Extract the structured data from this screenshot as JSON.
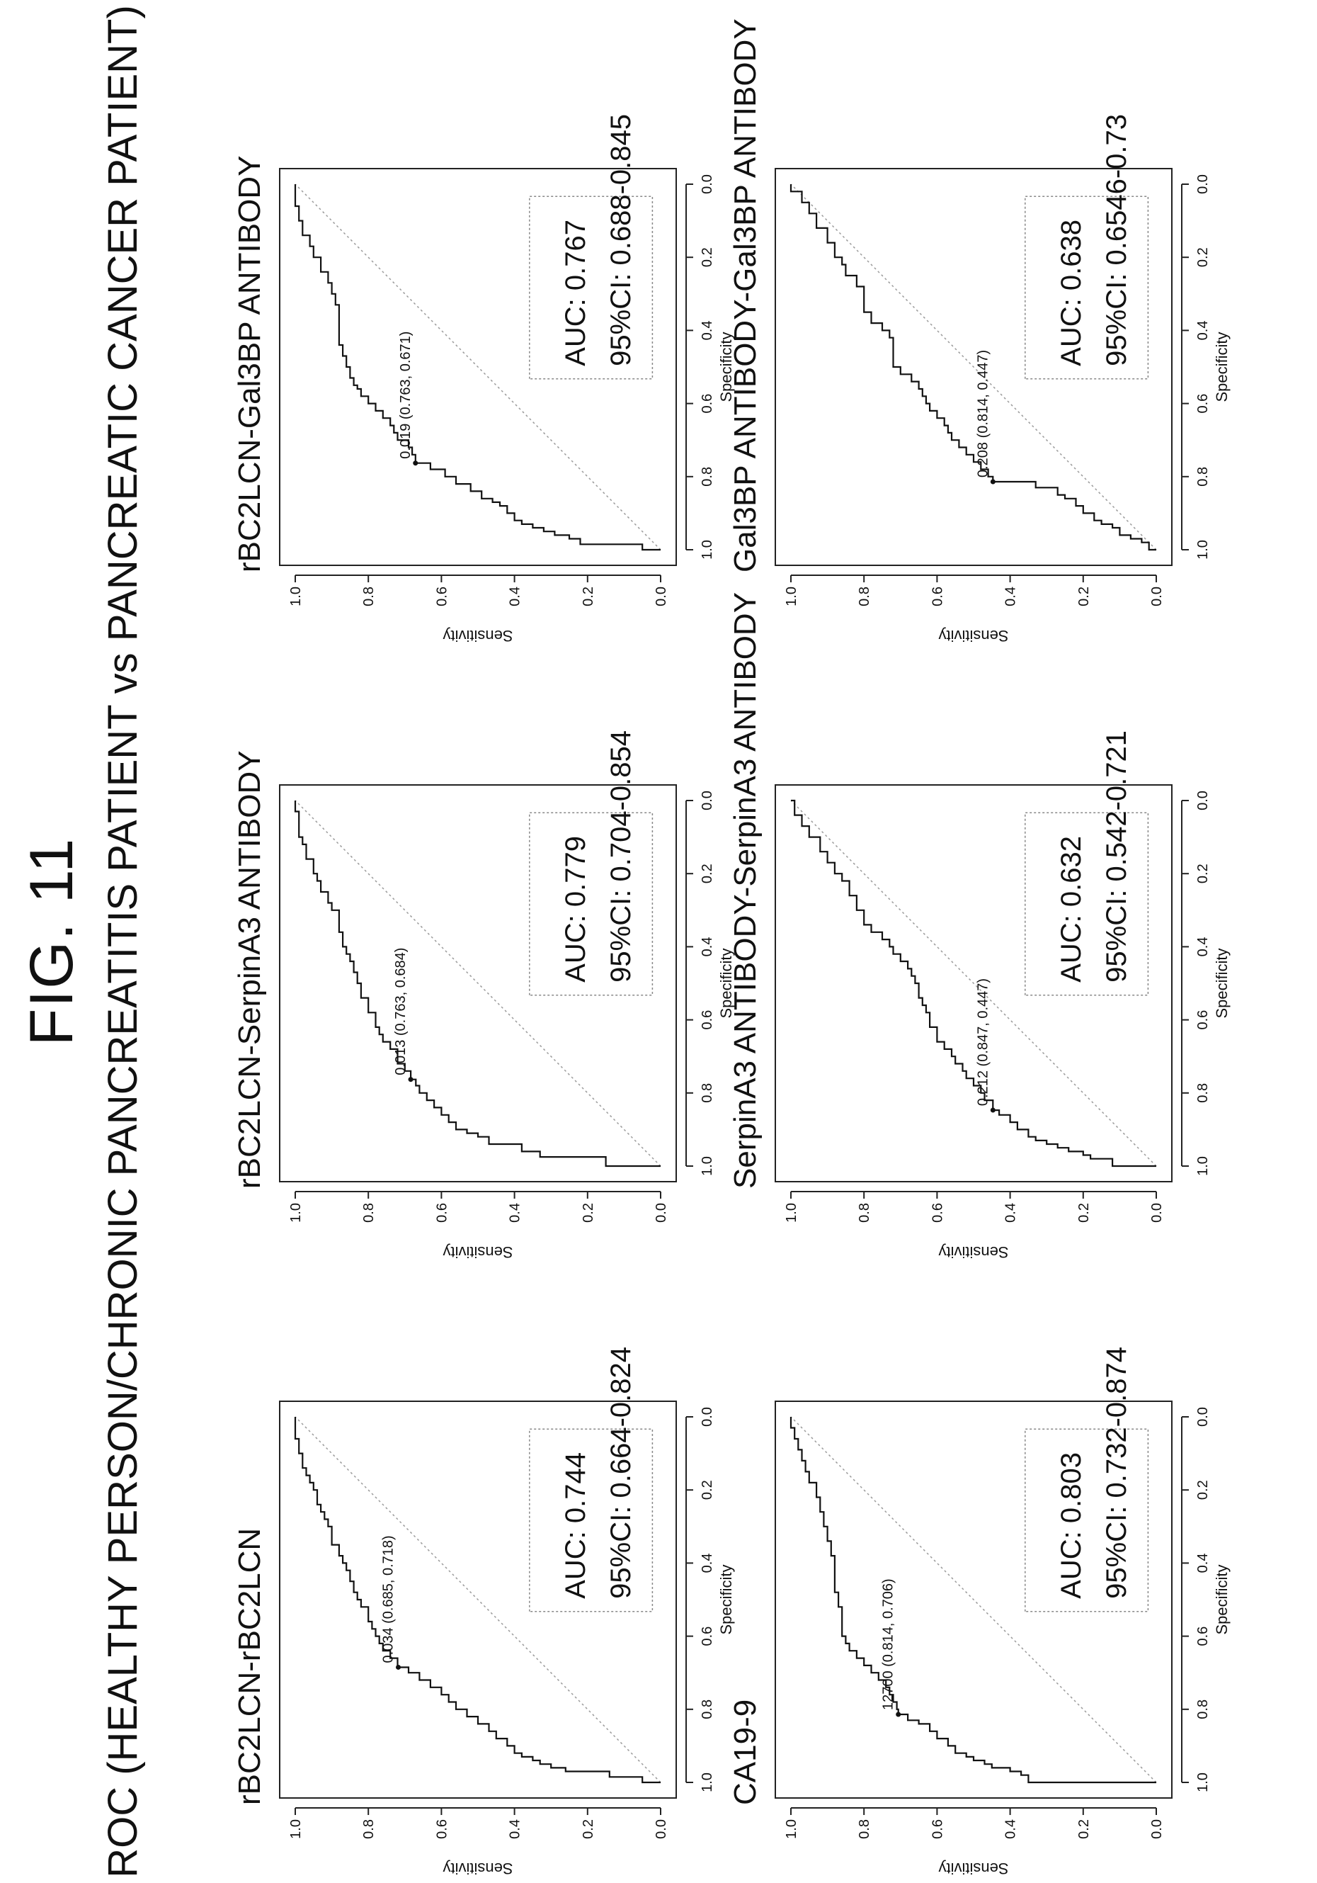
{
  "figure": {
    "title": "FIG. 11",
    "subtitle": "ROC (HEALTHY PERSON/CHRONIC PANCREATITIS PATIENT vs PANCREATIC CANCER PATIENT)"
  },
  "chart_data": [
    {
      "type": "line",
      "title": "rBC2LCN-rBC2LCN",
      "xlabel": "Specificity",
      "ylabel": "Sensitivity",
      "xlim": [
        1.0,
        0.0
      ],
      "ylim": [
        0.0,
        1.0
      ],
      "x_ticks": [
        "1.0",
        "0.8",
        "0.6",
        "0.4",
        "0.2",
        "0.0"
      ],
      "y_ticks": [
        "0.0",
        "0.2",
        "0.4",
        "0.6",
        "0.8",
        "1.0"
      ],
      "auc_text": "AUC: 0.744",
      "ci_text": "95%CI: 0.664-0.824",
      "threshold_label": "0.034 (0.685, 0.718)",
      "threshold_point": [
        0.685,
        0.718
      ],
      "series": [
        {
          "x": [
            1.0,
            1.0,
            0.985,
            0.985,
            0.97,
            0.97,
            0.96,
            0.95,
            0.94,
            0.93,
            0.92,
            0.9,
            0.88,
            0.86,
            0.84,
            0.82,
            0.8,
            0.78,
            0.76,
            0.74,
            0.72,
            0.7,
            0.685,
            0.66,
            0.64,
            0.62,
            0.6,
            0.58,
            0.56,
            0.54,
            0.52,
            0.5,
            0.48,
            0.45,
            0.42,
            0.4,
            0.38,
            0.35,
            0.32,
            0.3,
            0.28,
            0.26,
            0.24,
            0.2,
            0.18,
            0.16,
            0.14,
            0.12,
            0.1,
            0.08,
            0.06,
            0.04,
            0.0
          ],
          "y": [
            0.0,
            0.05,
            0.08,
            0.14,
            0.17,
            0.26,
            0.3,
            0.33,
            0.35,
            0.38,
            0.4,
            0.42,
            0.45,
            0.47,
            0.5,
            0.53,
            0.56,
            0.58,
            0.6,
            0.63,
            0.66,
            0.69,
            0.72,
            0.74,
            0.76,
            0.77,
            0.78,
            0.79,
            0.8,
            0.8,
            0.82,
            0.83,
            0.84,
            0.85,
            0.86,
            0.87,
            0.88,
            0.9,
            0.9,
            0.91,
            0.92,
            0.93,
            0.94,
            0.95,
            0.96,
            0.97,
            0.98,
            0.98,
            0.99,
            0.99,
            1.0,
            1.0,
            1.0
          ]
        }
      ]
    },
    {
      "type": "line",
      "title": "rBC2LCN-SerpinA3 ANTIBODY",
      "xlabel": "Specificity",
      "ylabel": "Sensitivity",
      "xlim": [
        1.0,
        0.0
      ],
      "ylim": [
        0.0,
        1.0
      ],
      "x_ticks": [
        "1.0",
        "0.8",
        "0.6",
        "0.4",
        "0.2",
        "0.0"
      ],
      "y_ticks": [
        "0.0",
        "0.2",
        "0.4",
        "0.6",
        "0.8",
        "1.0"
      ],
      "auc_text": "AUC: 0.779",
      "ci_text": "95%CI: 0.704-0.854",
      "threshold_label": "0.013 (0.763, 0.684)",
      "threshold_point": [
        0.763,
        0.684
      ],
      "series": [
        {
          "x": [
            1.0,
            1.0,
            0.975,
            0.975,
            0.96,
            0.96,
            0.94,
            0.94,
            0.92,
            0.91,
            0.9,
            0.88,
            0.86,
            0.84,
            0.82,
            0.8,
            0.78,
            0.763,
            0.74,
            0.72,
            0.7,
            0.68,
            0.66,
            0.64,
            0.62,
            0.6,
            0.58,
            0.56,
            0.54,
            0.5,
            0.47,
            0.44,
            0.42,
            0.4,
            0.36,
            0.33,
            0.3,
            0.28,
            0.25,
            0.22,
            0.2,
            0.16,
            0.12,
            0.1,
            0.06,
            0.03,
            0.0
          ],
          "y": [
            0.0,
            0.15,
            0.15,
            0.33,
            0.35,
            0.38,
            0.42,
            0.47,
            0.5,
            0.53,
            0.56,
            0.58,
            0.6,
            0.62,
            0.64,
            0.66,
            0.67,
            0.684,
            0.7,
            0.72,
            0.72,
            0.74,
            0.76,
            0.77,
            0.78,
            0.78,
            0.8,
            0.8,
            0.82,
            0.83,
            0.84,
            0.85,
            0.86,
            0.87,
            0.88,
            0.88,
            0.9,
            0.91,
            0.93,
            0.94,
            0.95,
            0.97,
            0.98,
            0.99,
            0.99,
            1.0,
            1.0
          ]
        }
      ]
    },
    {
      "type": "line",
      "title": "rBC2LCN-Gal3BP ANTIBODY",
      "xlabel": "Specificity",
      "ylabel": "Sensitivity",
      "xlim": [
        1.0,
        0.0
      ],
      "ylim": [
        0.0,
        1.0
      ],
      "x_ticks": [
        "1.0",
        "0.8",
        "0.6",
        "0.4",
        "0.2",
        "0.0"
      ],
      "y_ticks": [
        "0.0",
        "0.2",
        "0.4",
        "0.6",
        "0.8",
        "1.0"
      ],
      "auc_text": "AUC: 0.767",
      "ci_text": "95%CI: 0.688-0.845",
      "threshold_label": "0.019 (0.763, 0.671)",
      "threshold_point": [
        0.763,
        0.671
      ],
      "series": [
        {
          "x": [
            1.0,
            1.0,
            0.985,
            0.985,
            0.97,
            0.96,
            0.95,
            0.94,
            0.93,
            0.92,
            0.9,
            0.88,
            0.87,
            0.86,
            0.84,
            0.82,
            0.8,
            0.78,
            0.763,
            0.74,
            0.72,
            0.7,
            0.68,
            0.66,
            0.64,
            0.62,
            0.6,
            0.58,
            0.56,
            0.55,
            0.53,
            0.5,
            0.47,
            0.44,
            0.4,
            0.36,
            0.33,
            0.3,
            0.27,
            0.24,
            0.2,
            0.17,
            0.14,
            0.1,
            0.06,
            0.03,
            0.0
          ],
          "y": [
            0.0,
            0.05,
            0.2,
            0.22,
            0.25,
            0.29,
            0.32,
            0.35,
            0.38,
            0.4,
            0.42,
            0.44,
            0.46,
            0.49,
            0.52,
            0.56,
            0.59,
            0.63,
            0.671,
            0.68,
            0.69,
            0.72,
            0.73,
            0.74,
            0.76,
            0.78,
            0.8,
            0.82,
            0.83,
            0.84,
            0.85,
            0.86,
            0.87,
            0.88,
            0.88,
            0.88,
            0.89,
            0.9,
            0.91,
            0.93,
            0.95,
            0.96,
            0.98,
            0.99,
            1.0,
            1.0,
            1.0
          ]
        }
      ]
    },
    {
      "type": "line",
      "title": "CA19-9",
      "xlabel": "Specificity",
      "ylabel": "Sensitivity",
      "xlim": [
        1.0,
        0.0
      ],
      "ylim": [
        0.0,
        1.0
      ],
      "x_ticks": [
        "1.0",
        "0.8",
        "0.6",
        "0.4",
        "0.2",
        "0.0"
      ],
      "y_ticks": [
        "0.0",
        "0.2",
        "0.4",
        "0.6",
        "0.8",
        "1.0"
      ],
      "auc_text": "AUC: 0.803",
      "ci_text": "95%CI: 0.732-0.874",
      "threshold_label": "12700 (0.814, 0.706)",
      "threshold_point": [
        0.814,
        0.706
      ],
      "series": [
        {
          "x": [
            1.0,
            1.0,
            0.98,
            0.97,
            0.96,
            0.95,
            0.94,
            0.93,
            0.92,
            0.9,
            0.88,
            0.86,
            0.84,
            0.83,
            0.814,
            0.8,
            0.78,
            0.76,
            0.74,
            0.72,
            0.7,
            0.68,
            0.66,
            0.64,
            0.62,
            0.6,
            0.58,
            0.55,
            0.52,
            0.48,
            0.45,
            0.42,
            0.38,
            0.34,
            0.3,
            0.26,
            0.22,
            0.18,
            0.15,
            0.12,
            0.09,
            0.06,
            0.03,
            0.0
          ],
          "y": [
            0.0,
            0.35,
            0.37,
            0.4,
            0.45,
            0.47,
            0.5,
            0.52,
            0.55,
            0.57,
            0.6,
            0.62,
            0.65,
            0.68,
            0.706,
            0.71,
            0.72,
            0.73,
            0.74,
            0.76,
            0.78,
            0.8,
            0.82,
            0.84,
            0.85,
            0.86,
            0.86,
            0.86,
            0.87,
            0.88,
            0.88,
            0.88,
            0.89,
            0.9,
            0.91,
            0.92,
            0.93,
            0.95,
            0.96,
            0.97,
            0.98,
            0.99,
            1.0,
            1.0
          ]
        }
      ]
    },
    {
      "type": "line",
      "title": "SerpinA3 ANTIBODY-SerpinA3 ANTIBODY",
      "xlabel": "Specificity",
      "ylabel": "Sensitivity",
      "xlim": [
        1.0,
        0.0
      ],
      "ylim": [
        0.0,
        1.0
      ],
      "x_ticks": [
        "1.0",
        "0.8",
        "0.6",
        "0.4",
        "0.2",
        "0.0"
      ],
      "y_ticks": [
        "0.0",
        "0.2",
        "0.4",
        "0.6",
        "0.8",
        "1.0"
      ],
      "auc_text": "AUC: 0.632",
      "ci_text": "95%CI: 0.542-0.721",
      "threshold_label": "0.212 (0.847, 0.447)",
      "threshold_point": [
        0.847,
        0.447
      ],
      "series": [
        {
          "x": [
            1.0,
            1.0,
            0.98,
            0.97,
            0.96,
            0.95,
            0.94,
            0.93,
            0.92,
            0.9,
            0.88,
            0.86,
            0.847,
            0.82,
            0.8,
            0.78,
            0.76,
            0.74,
            0.72,
            0.7,
            0.68,
            0.66,
            0.64,
            0.62,
            0.6,
            0.58,
            0.56,
            0.54,
            0.52,
            0.5,
            0.48,
            0.46,
            0.44,
            0.42,
            0.4,
            0.38,
            0.36,
            0.34,
            0.3,
            0.26,
            0.22,
            0.2,
            0.17,
            0.14,
            0.1,
            0.07,
            0.04,
            0.0
          ],
          "y": [
            0.0,
            0.12,
            0.18,
            0.2,
            0.24,
            0.27,
            0.3,
            0.33,
            0.35,
            0.38,
            0.4,
            0.43,
            0.447,
            0.47,
            0.48,
            0.5,
            0.52,
            0.53,
            0.55,
            0.56,
            0.58,
            0.6,
            0.6,
            0.62,
            0.62,
            0.63,
            0.64,
            0.65,
            0.65,
            0.66,
            0.67,
            0.68,
            0.7,
            0.72,
            0.73,
            0.75,
            0.78,
            0.8,
            0.82,
            0.84,
            0.86,
            0.88,
            0.9,
            0.92,
            0.95,
            0.97,
            0.99,
            1.0
          ]
        }
      ]
    },
    {
      "type": "line",
      "title": "Gal3BP ANTIBODY-Gal3BP ANTIBODY",
      "xlabel": "Specificity",
      "ylabel": "Sensitivity",
      "xlim": [
        1.0,
        0.0
      ],
      "ylim": [
        0.0,
        1.0
      ],
      "x_ticks": [
        "1.0",
        "0.8",
        "0.6",
        "0.4",
        "0.2",
        "0.0"
      ],
      "y_ticks": [
        "0.0",
        "0.2",
        "0.4",
        "0.6",
        "0.8",
        "1.0"
      ],
      "auc_text": "AUC: 0.638",
      "ci_text": "95%CI: 0.6546-0.73",
      "threshold_label": "0.208 (0.814, 0.447)",
      "threshold_point": [
        0.814,
        0.447
      ],
      "series": [
        {
          "x": [
            1.0,
            1.0,
            0.98,
            0.97,
            0.96,
            0.94,
            0.93,
            0.92,
            0.9,
            0.88,
            0.86,
            0.85,
            0.83,
            0.83,
            0.814,
            0.8,
            0.78,
            0.76,
            0.74,
            0.72,
            0.7,
            0.68,
            0.66,
            0.64,
            0.62,
            0.6,
            0.58,
            0.56,
            0.54,
            0.52,
            0.5,
            0.48,
            0.45,
            0.42,
            0.4,
            0.38,
            0.35,
            0.32,
            0.28,
            0.25,
            0.22,
            0.2,
            0.16,
            0.12,
            0.08,
            0.05,
            0.02,
            0.0
          ],
          "y": [
            0.0,
            0.02,
            0.04,
            0.07,
            0.1,
            0.12,
            0.15,
            0.17,
            0.2,
            0.22,
            0.25,
            0.27,
            0.3,
            0.33,
            0.447,
            0.46,
            0.48,
            0.5,
            0.52,
            0.54,
            0.56,
            0.57,
            0.58,
            0.6,
            0.62,
            0.63,
            0.64,
            0.65,
            0.67,
            0.7,
            0.72,
            0.72,
            0.72,
            0.73,
            0.75,
            0.78,
            0.8,
            0.8,
            0.82,
            0.85,
            0.86,
            0.88,
            0.9,
            0.93,
            0.95,
            0.97,
            1.0,
            1.0
          ]
        }
      ]
    }
  ]
}
